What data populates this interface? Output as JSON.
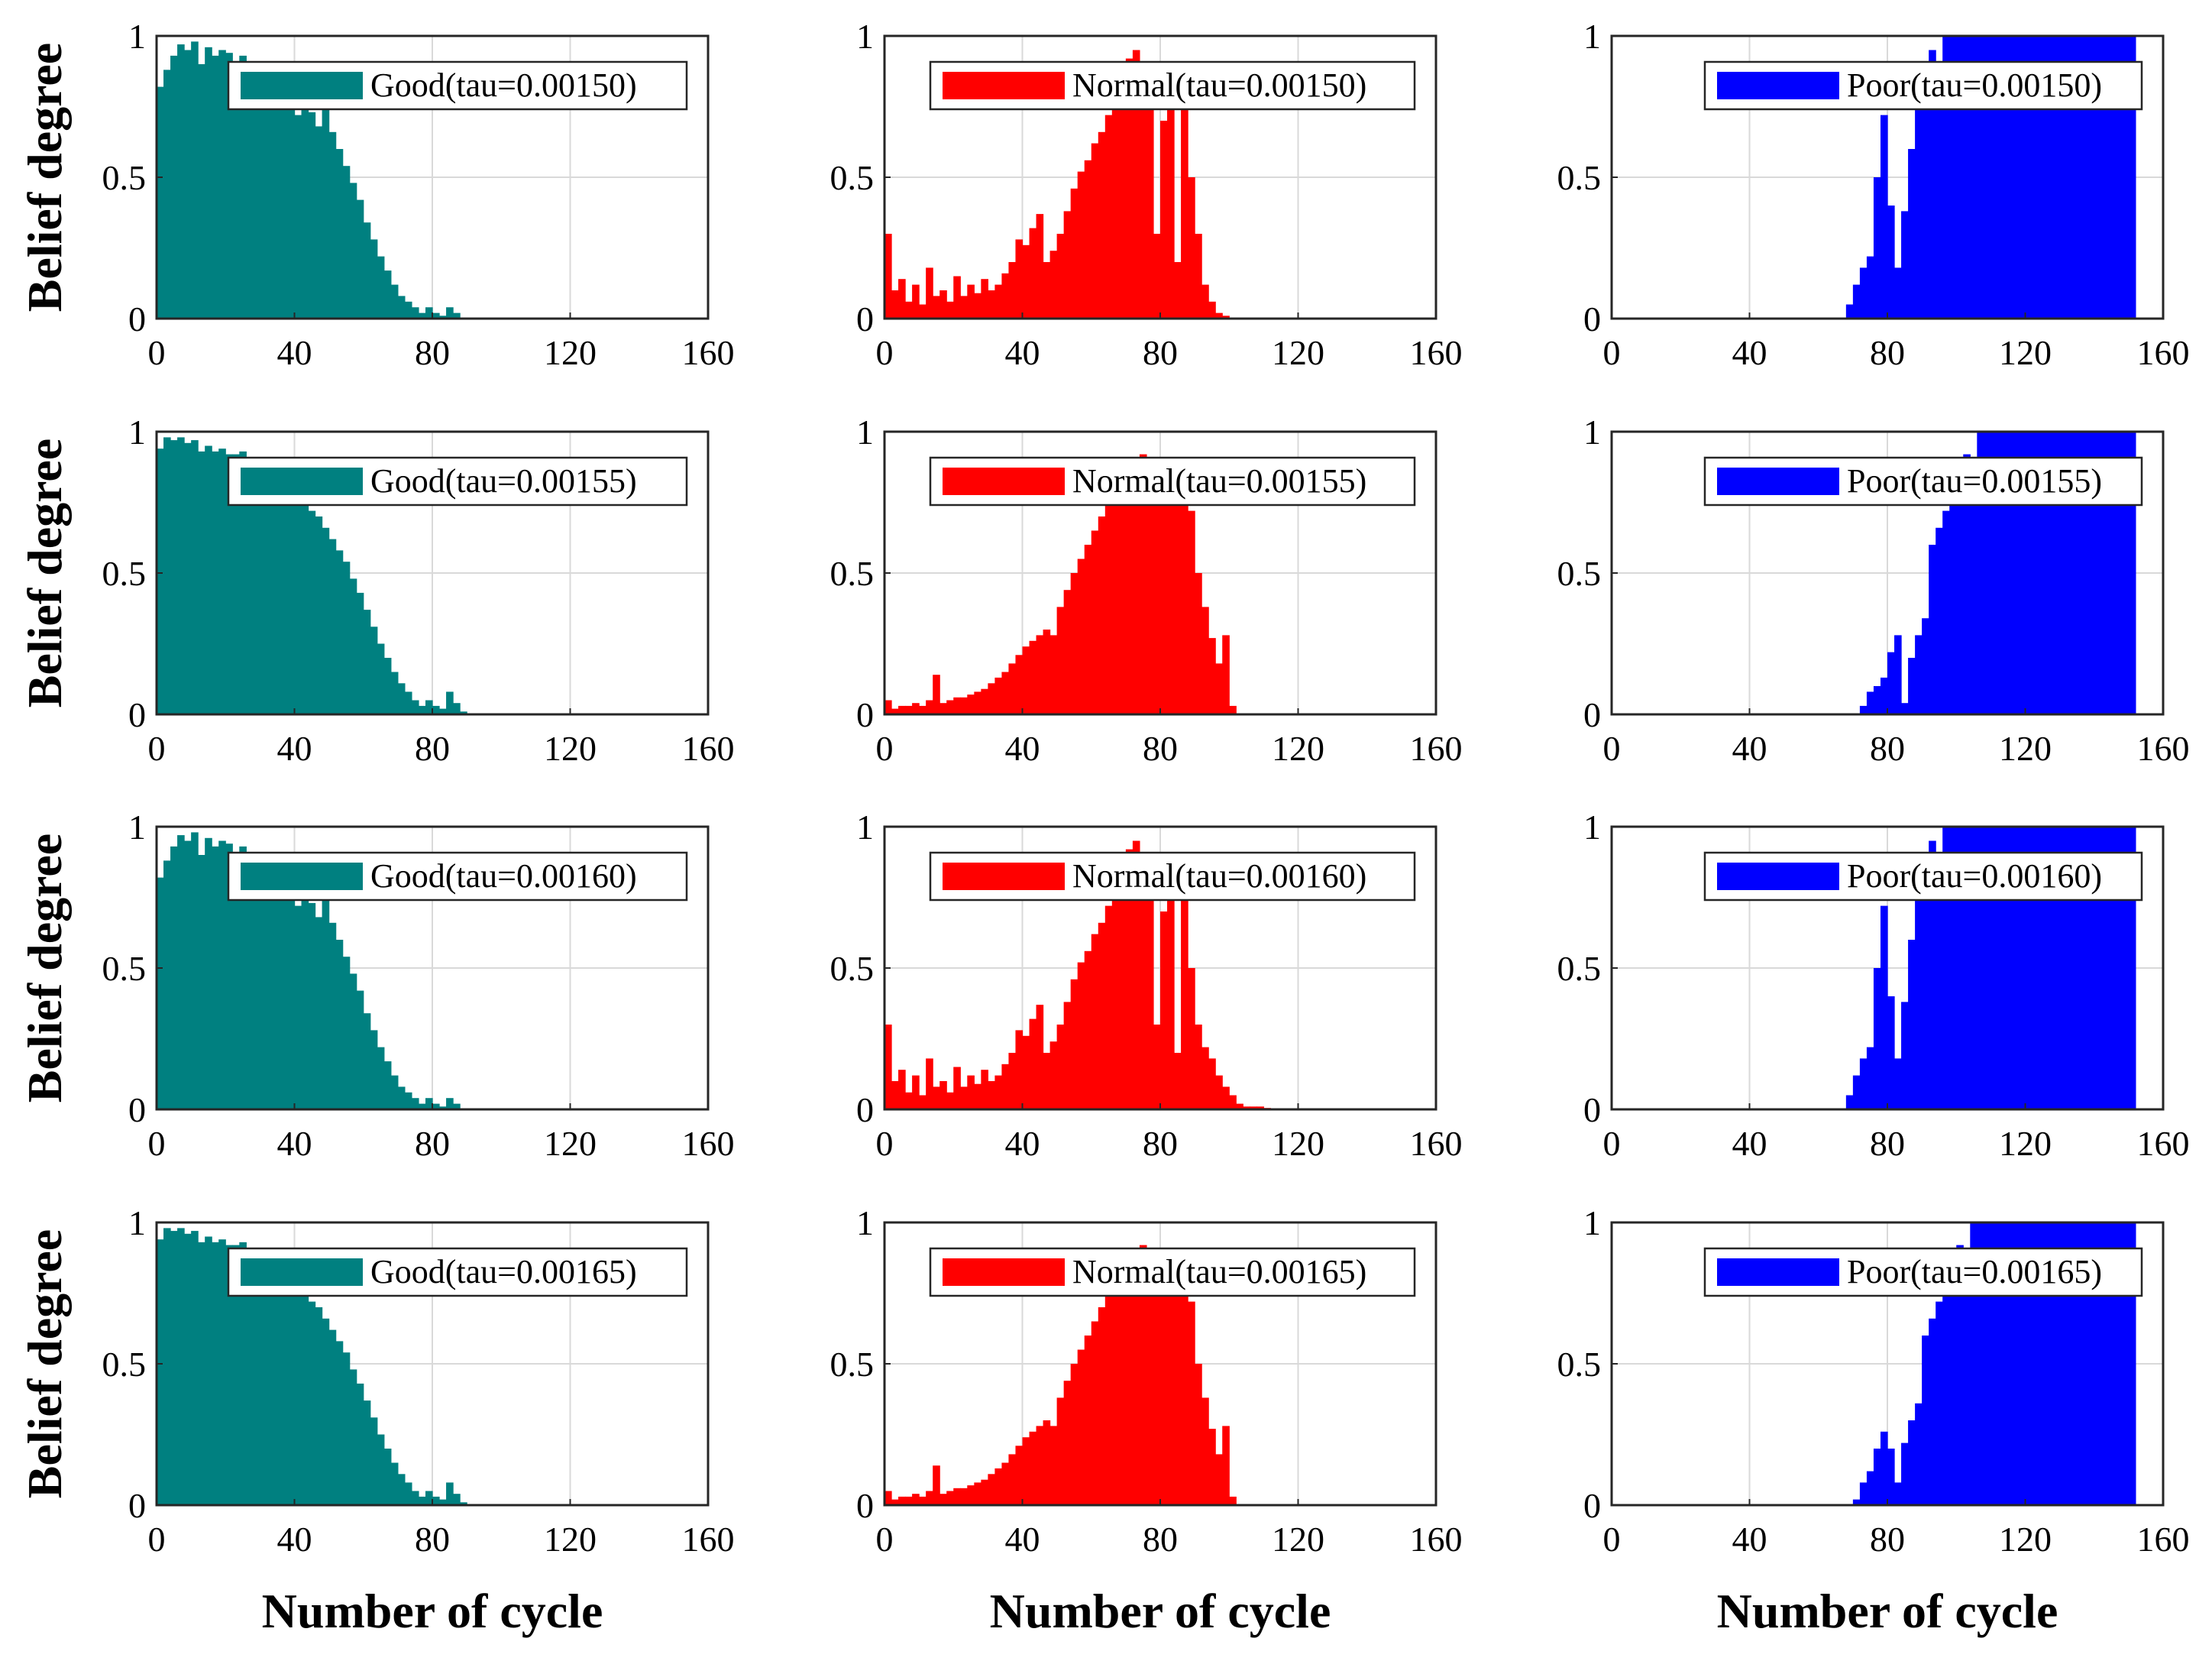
{
  "figure": {
    "ylabel": "Belief degree",
    "xlabel": "Number of cycle",
    "colors": {
      "Good": "#008080",
      "Normal": "#ff0000",
      "Poor": "#0000ff"
    }
  },
  "chart_data": [
    {
      "type": "bar",
      "row": 0,
      "col": 0,
      "state": "Good",
      "legend": "Good(tau=0.00150)",
      "xlim": [
        0,
        160
      ],
      "ylim": [
        0,
        1
      ],
      "xticks": [
        "0",
        "40",
        "80",
        "120",
        "160"
      ],
      "yticks": [
        "0",
        "0.5",
        "1"
      ],
      "grid": true,
      "x": [
        0,
        2,
        4,
        6,
        8,
        10,
        12,
        14,
        16,
        18,
        20,
        22,
        24,
        26,
        28,
        30,
        32,
        34,
        36,
        38,
        40,
        42,
        44,
        46,
        48,
        50,
        52,
        54,
        56,
        58,
        60,
        62,
        64,
        66,
        68,
        70,
        72,
        74,
        76,
        78,
        80,
        82,
        84,
        86,
        88
      ],
      "values": [
        0.82,
        0.88,
        0.93,
        0.97,
        0.95,
        0.98,
        0.9,
        0.96,
        0.93,
        0.95,
        0.94,
        0.9,
        0.93,
        0.88,
        0.9,
        0.86,
        0.87,
        0.84,
        0.8,
        0.78,
        0.72,
        0.76,
        0.73,
        0.68,
        0.74,
        0.66,
        0.6,
        0.54,
        0.48,
        0.42,
        0.34,
        0.28,
        0.22,
        0.17,
        0.12,
        0.08,
        0.06,
        0.04,
        0.02,
        0.04,
        0.02,
        0.01,
        0.04,
        0.02,
        0
      ]
    },
    {
      "type": "bar",
      "row": 0,
      "col": 1,
      "state": "Normal",
      "legend": "Normal(tau=0.00150)",
      "xlim": [
        0,
        160
      ],
      "ylim": [
        0,
        1
      ],
      "xticks": [
        "0",
        "40",
        "80",
        "120",
        "160"
      ],
      "yticks": [
        "0",
        "0.5",
        "1"
      ],
      "grid": true,
      "x": [
        0,
        2,
        4,
        6,
        8,
        10,
        12,
        14,
        16,
        18,
        20,
        22,
        24,
        26,
        28,
        30,
        32,
        34,
        36,
        38,
        40,
        42,
        44,
        46,
        48,
        50,
        52,
        54,
        56,
        58,
        60,
        62,
        64,
        66,
        68,
        70,
        72,
        74,
        76,
        78,
        80,
        82,
        84,
        86,
        88,
        90,
        92,
        94,
        96,
        98
      ],
      "values": [
        0.3,
        0.1,
        0.14,
        0.06,
        0.12,
        0.05,
        0.18,
        0.08,
        0.1,
        0.06,
        0.15,
        0.08,
        0.12,
        0.09,
        0.14,
        0.1,
        0.12,
        0.16,
        0.2,
        0.28,
        0.26,
        0.32,
        0.37,
        0.2,
        0.24,
        0.3,
        0.38,
        0.46,
        0.52,
        0.56,
        0.62,
        0.66,
        0.72,
        0.78,
        0.85,
        0.92,
        0.95,
        0.9,
        0.78,
        0.3,
        0.7,
        0.8,
        0.2,
        0.74,
        0.5,
        0.3,
        0.12,
        0.06,
        0.02,
        0.01
      ]
    },
    {
      "type": "bar",
      "row": 0,
      "col": 2,
      "state": "Poor",
      "legend": "Poor(tau=0.00150)",
      "xlim": [
        0,
        160
      ],
      "ylim": [
        0,
        1
      ],
      "xticks": [
        "0",
        "40",
        "80",
        "120",
        "160"
      ],
      "yticks": [
        "0",
        "0.5",
        "1"
      ],
      "grid": true,
      "x": [
        68,
        70,
        72,
        74,
        76,
        78,
        80,
        82,
        84,
        86,
        88,
        90,
        92,
        94,
        96,
        98,
        100,
        102,
        104,
        106,
        108,
        110,
        112,
        114,
        116,
        118,
        120,
        122,
        124,
        126,
        128,
        130,
        132,
        134,
        136,
        138,
        140,
        142,
        144,
        146,
        148,
        150
      ],
      "values": [
        0.05,
        0.12,
        0.18,
        0.22,
        0.5,
        0.72,
        0.4,
        0.18,
        0.38,
        0.6,
        0.75,
        0.88,
        0.95,
        0.9,
        1,
        1,
        1,
        1,
        1,
        1,
        1,
        1,
        1,
        1,
        1,
        1,
        1,
        1,
        1,
        1,
        1,
        1,
        1,
        1,
        1,
        1,
        1,
        1,
        1,
        1,
        1,
        1
      ]
    },
    {
      "type": "bar",
      "row": 1,
      "col": 0,
      "state": "Good",
      "legend": "Good(tau=0.00155)",
      "xlim": [
        0,
        160
      ],
      "ylim": [
        0,
        1
      ],
      "xticks": [
        "0",
        "40",
        "80",
        "120",
        "160"
      ],
      "yticks": [
        "0",
        "0.5",
        "1"
      ],
      "grid": true,
      "x": [
        0,
        2,
        4,
        6,
        8,
        10,
        12,
        14,
        16,
        18,
        20,
        22,
        24,
        26,
        28,
        30,
        32,
        34,
        36,
        38,
        40,
        42,
        44,
        46,
        48,
        50,
        52,
        54,
        56,
        58,
        60,
        62,
        64,
        66,
        68,
        70,
        72,
        74,
        76,
        78,
        80,
        82,
        84,
        86,
        88
      ],
      "values": [
        0.94,
        0.98,
        0.97,
        0.98,
        0.96,
        0.97,
        0.93,
        0.95,
        0.93,
        0.94,
        0.92,
        0.92,
        0.93,
        0.9,
        0.89,
        0.87,
        0.86,
        0.84,
        0.82,
        0.8,
        0.78,
        0.75,
        0.72,
        0.7,
        0.66,
        0.62,
        0.58,
        0.54,
        0.48,
        0.43,
        0.37,
        0.31,
        0.25,
        0.2,
        0.15,
        0.11,
        0.08,
        0.05,
        0.03,
        0.05,
        0.03,
        0.02,
        0.08,
        0.04,
        0.01
      ]
    },
    {
      "type": "bar",
      "row": 1,
      "col": 1,
      "state": "Normal",
      "legend": "Normal(tau=0.00155)",
      "xlim": [
        0,
        160
      ],
      "ylim": [
        0,
        1
      ],
      "xticks": [
        "0",
        "40",
        "80",
        "120",
        "160"
      ],
      "yticks": [
        "0",
        "0.5",
        "1"
      ],
      "grid": true,
      "x": [
        0,
        2,
        4,
        6,
        8,
        10,
        12,
        14,
        16,
        18,
        20,
        22,
        24,
        26,
        28,
        30,
        32,
        34,
        36,
        38,
        40,
        42,
        44,
        46,
        48,
        50,
        52,
        54,
        56,
        58,
        60,
        62,
        64,
        66,
        68,
        70,
        72,
        74,
        76,
        78,
        80,
        82,
        84,
        86,
        88,
        90,
        92,
        94,
        96,
        98,
        100
      ],
      "values": [
        0.05,
        0.02,
        0.03,
        0.03,
        0.04,
        0.03,
        0.05,
        0.14,
        0.04,
        0.05,
        0.06,
        0.06,
        0.07,
        0.08,
        0.09,
        0.11,
        0.13,
        0.15,
        0.18,
        0.21,
        0.24,
        0.26,
        0.28,
        0.3,
        0.28,
        0.38,
        0.44,
        0.5,
        0.55,
        0.6,
        0.65,
        0.7,
        0.76,
        0.82,
        0.88,
        0.9,
        0.88,
        0.92,
        0.9,
        0.89,
        0.88,
        0.9,
        0.88,
        0.87,
        0.72,
        0.5,
        0.38,
        0.27,
        0.18,
        0.28,
        0.03
      ]
    },
    {
      "type": "bar",
      "row": 1,
      "col": 2,
      "state": "Poor",
      "legend": "Poor(tau=0.00155)",
      "xlim": [
        0,
        160
      ],
      "ylim": [
        0,
        1
      ],
      "xticks": [
        "0",
        "40",
        "80",
        "120",
        "160"
      ],
      "yticks": [
        "0",
        "0.5",
        "1"
      ],
      "grid": true,
      "x": [
        72,
        74,
        76,
        78,
        80,
        82,
        84,
        86,
        88,
        90,
        92,
        94,
        96,
        98,
        100,
        102,
        104,
        106,
        108,
        110,
        112,
        114,
        116,
        118,
        120,
        122,
        124,
        126,
        128,
        130,
        132,
        134,
        136,
        138,
        140,
        142,
        144,
        146,
        148,
        150
      ],
      "values": [
        0.03,
        0.08,
        0.1,
        0.13,
        0.22,
        0.28,
        0.04,
        0.2,
        0.28,
        0.34,
        0.6,
        0.66,
        0.72,
        0.78,
        0.82,
        0.92,
        0.88,
        1,
        1,
        1,
        1,
        1,
        1,
        1,
        1,
        1,
        1,
        1,
        1,
        1,
        1,
        1,
        1,
        1,
        1,
        1,
        1,
        1,
        1,
        1
      ]
    },
    {
      "type": "bar",
      "row": 2,
      "col": 0,
      "state": "Good",
      "legend": "Good(tau=0.00160)",
      "xlim": [
        0,
        160
      ],
      "ylim": [
        0,
        1
      ],
      "xticks": [
        "0",
        "40",
        "80",
        "120",
        "160"
      ],
      "yticks": [
        "0",
        "0.5",
        "1"
      ],
      "grid": true,
      "x": [
        0,
        2,
        4,
        6,
        8,
        10,
        12,
        14,
        16,
        18,
        20,
        22,
        24,
        26,
        28,
        30,
        32,
        34,
        36,
        38,
        40,
        42,
        44,
        46,
        48,
        50,
        52,
        54,
        56,
        58,
        60,
        62,
        64,
        66,
        68,
        70,
        72,
        74,
        76,
        78,
        80,
        82,
        84,
        86,
        88
      ],
      "values": [
        0.82,
        0.88,
        0.93,
        0.97,
        0.95,
        0.98,
        0.9,
        0.96,
        0.93,
        0.95,
        0.94,
        0.9,
        0.93,
        0.88,
        0.9,
        0.86,
        0.87,
        0.84,
        0.8,
        0.78,
        0.72,
        0.76,
        0.73,
        0.68,
        0.74,
        0.66,
        0.6,
        0.54,
        0.48,
        0.42,
        0.34,
        0.28,
        0.22,
        0.17,
        0.12,
        0.08,
        0.06,
        0.04,
        0.02,
        0.04,
        0.02,
        0.01,
        0.04,
        0.02,
        0
      ]
    },
    {
      "type": "bar",
      "row": 2,
      "col": 1,
      "state": "Normal",
      "legend": "Normal(tau=0.00160)",
      "xlim": [
        0,
        160
      ],
      "ylim": [
        0,
        1
      ],
      "xticks": [
        "0",
        "40",
        "80",
        "120",
        "160"
      ],
      "yticks": [
        "0",
        "0.5",
        "1"
      ],
      "grid": true,
      "x": [
        0,
        2,
        4,
        6,
        8,
        10,
        12,
        14,
        16,
        18,
        20,
        22,
        24,
        26,
        28,
        30,
        32,
        34,
        36,
        38,
        40,
        42,
        44,
        46,
        48,
        50,
        52,
        54,
        56,
        58,
        60,
        62,
        64,
        66,
        68,
        70,
        72,
        74,
        76,
        78,
        80,
        82,
        84,
        86,
        88,
        90,
        92,
        94,
        96,
        98,
        100,
        102,
        104,
        106,
        108,
        110
      ],
      "values": [
        0.3,
        0.1,
        0.14,
        0.06,
        0.12,
        0.05,
        0.18,
        0.08,
        0.1,
        0.06,
        0.15,
        0.08,
        0.12,
        0.09,
        0.14,
        0.1,
        0.12,
        0.16,
        0.2,
        0.28,
        0.26,
        0.32,
        0.37,
        0.2,
        0.24,
        0.3,
        0.38,
        0.46,
        0.52,
        0.56,
        0.62,
        0.66,
        0.72,
        0.78,
        0.85,
        0.92,
        0.95,
        0.9,
        0.78,
        0.3,
        0.7,
        0.8,
        0.2,
        0.74,
        0.5,
        0.3,
        0.22,
        0.18,
        0.12,
        0.08,
        0.05,
        0.02,
        0.01,
        0.01,
        0.01,
        0.005
      ]
    },
    {
      "type": "bar",
      "row": 2,
      "col": 2,
      "state": "Poor",
      "legend": "Poor(tau=0.00160)",
      "xlim": [
        0,
        160
      ],
      "ylim": [
        0,
        1
      ],
      "xticks": [
        "0",
        "40",
        "80",
        "120",
        "160"
      ],
      "yticks": [
        "0",
        "0.5",
        "1"
      ],
      "grid": true,
      "x": [
        68,
        70,
        72,
        74,
        76,
        78,
        80,
        82,
        84,
        86,
        88,
        90,
        92,
        94,
        96,
        98,
        100,
        102,
        104,
        106,
        108,
        110,
        112,
        114,
        116,
        118,
        120,
        122,
        124,
        126,
        128,
        130,
        132,
        134,
        136,
        138,
        140,
        142,
        144,
        146,
        148,
        150
      ],
      "values": [
        0.05,
        0.12,
        0.18,
        0.22,
        0.5,
        0.72,
        0.4,
        0.18,
        0.38,
        0.6,
        0.75,
        0.88,
        0.95,
        0.9,
        1,
        1,
        1,
        1,
        1,
        1,
        1,
        1,
        1,
        1,
        1,
        1,
        1,
        1,
        1,
        1,
        1,
        1,
        1,
        1,
        1,
        1,
        1,
        1,
        1,
        1,
        1,
        1
      ]
    },
    {
      "type": "bar",
      "row": 3,
      "col": 0,
      "state": "Good",
      "legend": "Good(tau=0.00165)",
      "xlim": [
        0,
        160
      ],
      "ylim": [
        0,
        1
      ],
      "xticks": [
        "0",
        "40",
        "80",
        "120",
        "160"
      ],
      "yticks": [
        "0",
        "0.5",
        "1"
      ],
      "grid": true,
      "x": [
        0,
        2,
        4,
        6,
        8,
        10,
        12,
        14,
        16,
        18,
        20,
        22,
        24,
        26,
        28,
        30,
        32,
        34,
        36,
        38,
        40,
        42,
        44,
        46,
        48,
        50,
        52,
        54,
        56,
        58,
        60,
        62,
        64,
        66,
        68,
        70,
        72,
        74,
        76,
        78,
        80,
        82,
        84,
        86,
        88
      ],
      "values": [
        0.94,
        0.98,
        0.97,
        0.98,
        0.96,
        0.97,
        0.93,
        0.95,
        0.93,
        0.94,
        0.92,
        0.92,
        0.93,
        0.9,
        0.89,
        0.87,
        0.86,
        0.84,
        0.82,
        0.8,
        0.78,
        0.75,
        0.72,
        0.7,
        0.66,
        0.62,
        0.58,
        0.54,
        0.48,
        0.43,
        0.37,
        0.31,
        0.25,
        0.2,
        0.15,
        0.11,
        0.08,
        0.05,
        0.03,
        0.05,
        0.03,
        0.02,
        0.08,
        0.04,
        0.01
      ]
    },
    {
      "type": "bar",
      "row": 3,
      "col": 1,
      "state": "Normal",
      "legend": "Normal(tau=0.00165)",
      "xlim": [
        0,
        160
      ],
      "ylim": [
        0,
        1
      ],
      "xticks": [
        "0",
        "40",
        "80",
        "120",
        "160"
      ],
      "yticks": [
        "0",
        "0.5",
        "1"
      ],
      "grid": true,
      "x": [
        0,
        2,
        4,
        6,
        8,
        10,
        12,
        14,
        16,
        18,
        20,
        22,
        24,
        26,
        28,
        30,
        32,
        34,
        36,
        38,
        40,
        42,
        44,
        46,
        48,
        50,
        52,
        54,
        56,
        58,
        60,
        62,
        64,
        66,
        68,
        70,
        72,
        74,
        76,
        78,
        80,
        82,
        84,
        86,
        88,
        90,
        92,
        94,
        96,
        98,
        100
      ],
      "values": [
        0.05,
        0.02,
        0.03,
        0.03,
        0.04,
        0.03,
        0.05,
        0.14,
        0.04,
        0.05,
        0.06,
        0.06,
        0.07,
        0.08,
        0.09,
        0.11,
        0.13,
        0.15,
        0.18,
        0.21,
        0.24,
        0.26,
        0.28,
        0.3,
        0.28,
        0.38,
        0.44,
        0.5,
        0.55,
        0.6,
        0.65,
        0.7,
        0.76,
        0.82,
        0.88,
        0.9,
        0.88,
        0.92,
        0.9,
        0.89,
        0.88,
        0.9,
        0.88,
        0.87,
        0.72,
        0.5,
        0.38,
        0.27,
        0.18,
        0.28,
        0.03
      ]
    },
    {
      "type": "bar",
      "row": 3,
      "col": 2,
      "state": "Poor",
      "legend": "Poor(tau=0.00165)",
      "xlim": [
        0,
        160
      ],
      "ylim": [
        0,
        1
      ],
      "xticks": [
        "0",
        "40",
        "80",
        "120",
        "160"
      ],
      "yticks": [
        "0",
        "0.5",
        "1"
      ],
      "grid": true,
      "x": [
        70,
        72,
        74,
        76,
        78,
        80,
        82,
        84,
        86,
        88,
        90,
        92,
        94,
        96,
        98,
        100,
        102,
        104,
        106,
        108,
        110,
        112,
        114,
        116,
        118,
        120,
        122,
        124,
        126,
        128,
        130,
        132,
        134,
        136,
        138,
        140,
        142,
        144,
        146,
        148,
        150
      ],
      "values": [
        0.02,
        0.08,
        0.12,
        0.2,
        0.26,
        0.2,
        0.08,
        0.22,
        0.3,
        0.36,
        0.6,
        0.66,
        0.72,
        0.78,
        0.82,
        0.92,
        0.88,
        1,
        1,
        1,
        1,
        1,
        1,
        1,
        1,
        1,
        1,
        1,
        1,
        1,
        1,
        1,
        1,
        1,
        1,
        1,
        1,
        1,
        1,
        1,
        1
      ]
    }
  ]
}
